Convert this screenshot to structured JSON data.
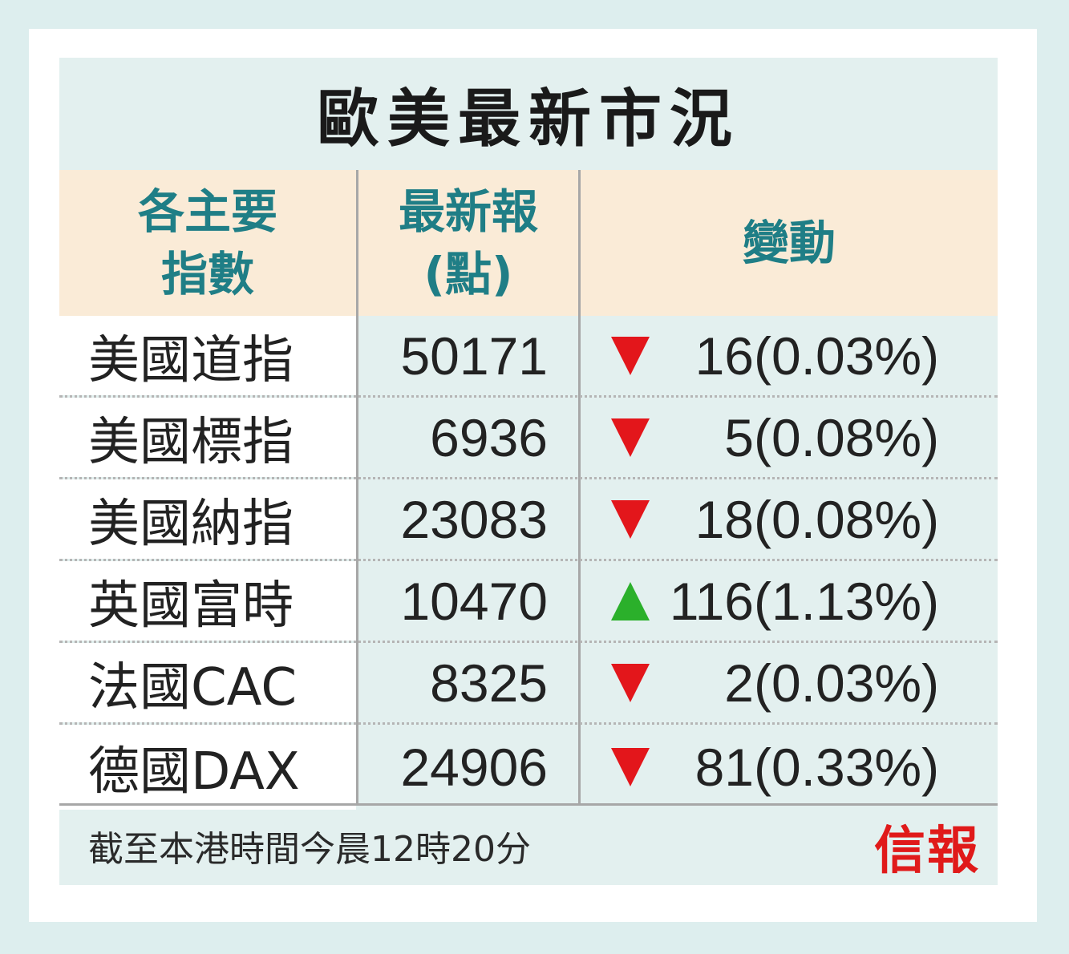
{
  "title": "歐美最新市況",
  "headers": {
    "index": [
      "各主要",
      "指數"
    ],
    "latest": [
      "最新報",
      "(點)"
    ],
    "change": "變動"
  },
  "rows": [
    {
      "name": "美國道指",
      "value": "50171",
      "direction": "down",
      "change": "16",
      "pct": "(0.03%)"
    },
    {
      "name": "美國標指",
      "value": "6936",
      "direction": "down",
      "change": "5",
      "pct": "(0.08%)"
    },
    {
      "name": "美國納指",
      "value": "23083",
      "direction": "down",
      "change": "18",
      "pct": "(0.08%)"
    },
    {
      "name": "英國富時",
      "value": "10470",
      "direction": "up",
      "change": "116",
      "pct": "(1.13%)"
    },
    {
      "name": "法國CAC",
      "value": "8325",
      "direction": "down",
      "change": "2",
      "pct": "(0.03%)"
    },
    {
      "name": "德國DAX",
      "value": "24906",
      "direction": "down",
      "change": "81",
      "pct": "(0.33%)"
    }
  ],
  "note": "截至本港時間今晨12時20分",
  "logo": "信報",
  "colors": {
    "down": "#e3161b",
    "up": "#2bb02b",
    "header_text": "#1f7e86",
    "logo": "#e01a1a"
  }
}
